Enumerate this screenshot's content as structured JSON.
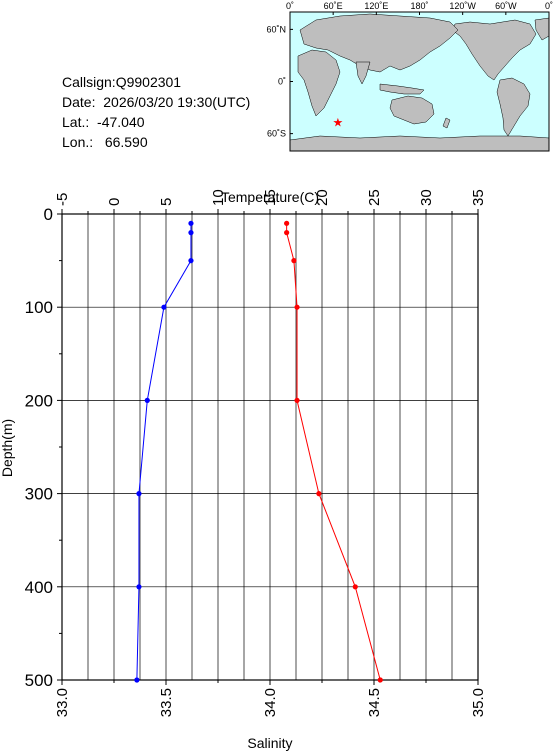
{
  "station": {
    "callsign_label": "Callsign:",
    "callsign": "Q9902301",
    "date_label": "Date:",
    "date": "2026/03/20 19:30(UTC)",
    "lat_label": "Lat.:",
    "lat": "-47.040",
    "lon_label": "Lon.:",
    "lon": "66.590"
  },
  "map": {
    "top_labels": [
      "0˚",
      "60˚E",
      "120˚E",
      "180˚",
      "120˚W",
      "60˚W",
      "0˚"
    ],
    "left_labels": [
      "60˚N",
      "0˚",
      "60˚S"
    ],
    "ocean_color": "#ccffff",
    "land_color": "#bebebe",
    "marker_color": "#ff0000",
    "marker": {
      "lon": 66.59,
      "lat": -47.04
    }
  },
  "chart_data": {
    "type": "line",
    "xlabel_top": "Temperature(C)",
    "xlabel_bottom": "Salinity",
    "ylabel": "Depth(m)",
    "temperature_axis": {
      "min": -5,
      "max": 35,
      "ticks": [
        "-5",
        "0",
        "5",
        "10",
        "15",
        "20",
        "25",
        "30",
        "35"
      ]
    },
    "salinity_axis": {
      "min": 33.0,
      "max": 35.0,
      "ticks": [
        "33.0",
        "33.5",
        "34.0",
        "34.5",
        "35.0"
      ]
    },
    "depth_axis": {
      "min": 0,
      "max": 500,
      "ticks": [
        "0",
        "100",
        "200",
        "300",
        "400",
        "500"
      ]
    },
    "grid": true,
    "series": [
      {
        "id": "salinity",
        "color": "#0000ff",
        "axis": "salinity",
        "points": [
          [
            33.62,
            10
          ],
          [
            33.62,
            20
          ],
          [
            33.62,
            50
          ],
          [
            33.49,
            100
          ],
          [
            33.41,
            200
          ],
          [
            33.37,
            300
          ],
          [
            33.37,
            400
          ],
          [
            33.36,
            500
          ]
        ]
      },
      {
        "id": "temperature",
        "color": "#ff0000",
        "axis": "temperature",
        "points": [
          [
            16.6,
            10
          ],
          [
            16.6,
            20
          ],
          [
            17.3,
            50
          ],
          [
            17.6,
            100
          ],
          [
            17.6,
            200
          ],
          [
            19.7,
            300
          ],
          [
            23.2,
            400
          ],
          [
            25.6,
            500
          ]
        ]
      }
    ]
  }
}
